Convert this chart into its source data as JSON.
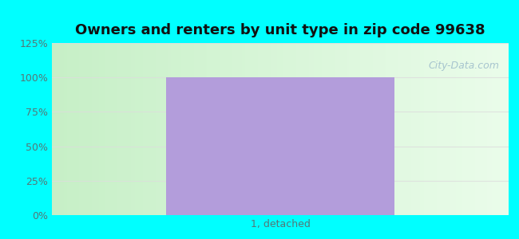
{
  "title": "Owners and renters by unit type in zip code 99638",
  "categories": [
    "1, detached"
  ],
  "values": [
    100
  ],
  "bar_color": "#b39ddb",
  "bar_width": 0.5,
  "ylim": [
    0,
    125
  ],
  "yticks": [
    0,
    25,
    50,
    75,
    100,
    125
  ],
  "ytick_labels": [
    "0%",
    "25%",
    "50%",
    "75%",
    "100%",
    "125%"
  ],
  "title_fontsize": 13,
  "tick_fontsize": 9,
  "xlabel_fontsize": 9,
  "bg_outer_color": "#00FFFF",
  "watermark_text": "City-Data.com",
  "watermark_color": "#a0bfcc",
  "grid_color": "#dddddd",
  "tick_color": "#557777"
}
